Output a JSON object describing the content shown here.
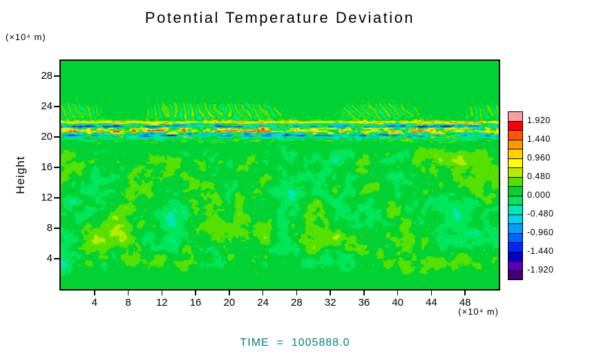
{
  "colors": {
    "time_label": "#008080",
    "axis": "#000000",
    "background": "#ffffff"
  },
  "chart_data": {
    "type": "heatmap",
    "title": "Potential Temperature Deviation",
    "xlabel": "(×10⁴ m)",
    "ylabel": "Height",
    "ylabel_unit": "(×10⁴ m)",
    "xlim": [
      0,
      52
    ],
    "ylim": [
      0,
      30
    ],
    "xticks": [
      4,
      8,
      12,
      16,
      20,
      24,
      28,
      32,
      36,
      40,
      44,
      48
    ],
    "yticks": [
      4,
      8,
      12,
      16,
      20,
      24,
      28
    ],
    "grid": false,
    "legend": "colorbar-right",
    "time_label": "TIME  =  1005888.0",
    "colorbar": {
      "min": -2.16,
      "max": 2.16,
      "step": 0.24,
      "tick_labels": [
        "1.920",
        "1.440",
        "0.960",
        "0.480",
        "0.000",
        "-0.480",
        "-0.960",
        "-1.440",
        "-1.920"
      ],
      "tick_values": [
        1.92,
        1.44,
        0.96,
        0.48,
        0,
        -0.48,
        -0.96,
        -1.44,
        -1.92
      ],
      "colors_bottom_to_top": [
        "#440077",
        "#5a00b4",
        "#0000c8",
        "#0028ff",
        "#0064ff",
        "#00a0ff",
        "#00d2f0",
        "#00e6b4",
        "#00e65a",
        "#00d233",
        "#55e000",
        "#b4eb00",
        "#ffff00",
        "#ffd200",
        "#ff9b00",
        "#ff5500",
        "#ff0000",
        "#ff9e9e"
      ]
    },
    "field": {
      "description": "Potential temperature deviation: near-zero green background, strong turbulent shear band near height 20-22 with saturated +/-1.9 streaks, gravity-wave ripples just above the band, weak mottled turbulence below height 19.",
      "base_value": 0.12,
      "shear_band": {
        "y_center": 20.9,
        "half_width": 1.15,
        "amplitude": 2.0,
        "layers": [
          {
            "y": 20.2,
            "width": 0.16,
            "amp": -1.9
          },
          {
            "y": 20.75,
            "width": 0.15,
            "amp": 1.7
          },
          {
            "y": 21.35,
            "width": 0.16,
            "amp": -1.25
          },
          {
            "y": 21.9,
            "width": 0.14,
            "amp": 1.1
          }
        ]
      },
      "gravity_waves": {
        "y_center": 23.2,
        "spread": 1.2,
        "amplitude": 0.5,
        "wavelength_x": 1.1
      },
      "lower_turbulence": {
        "y_top": 19.3,
        "y_bottom": 1.0,
        "amplitude": 0.5
      },
      "seed": 11
    }
  }
}
